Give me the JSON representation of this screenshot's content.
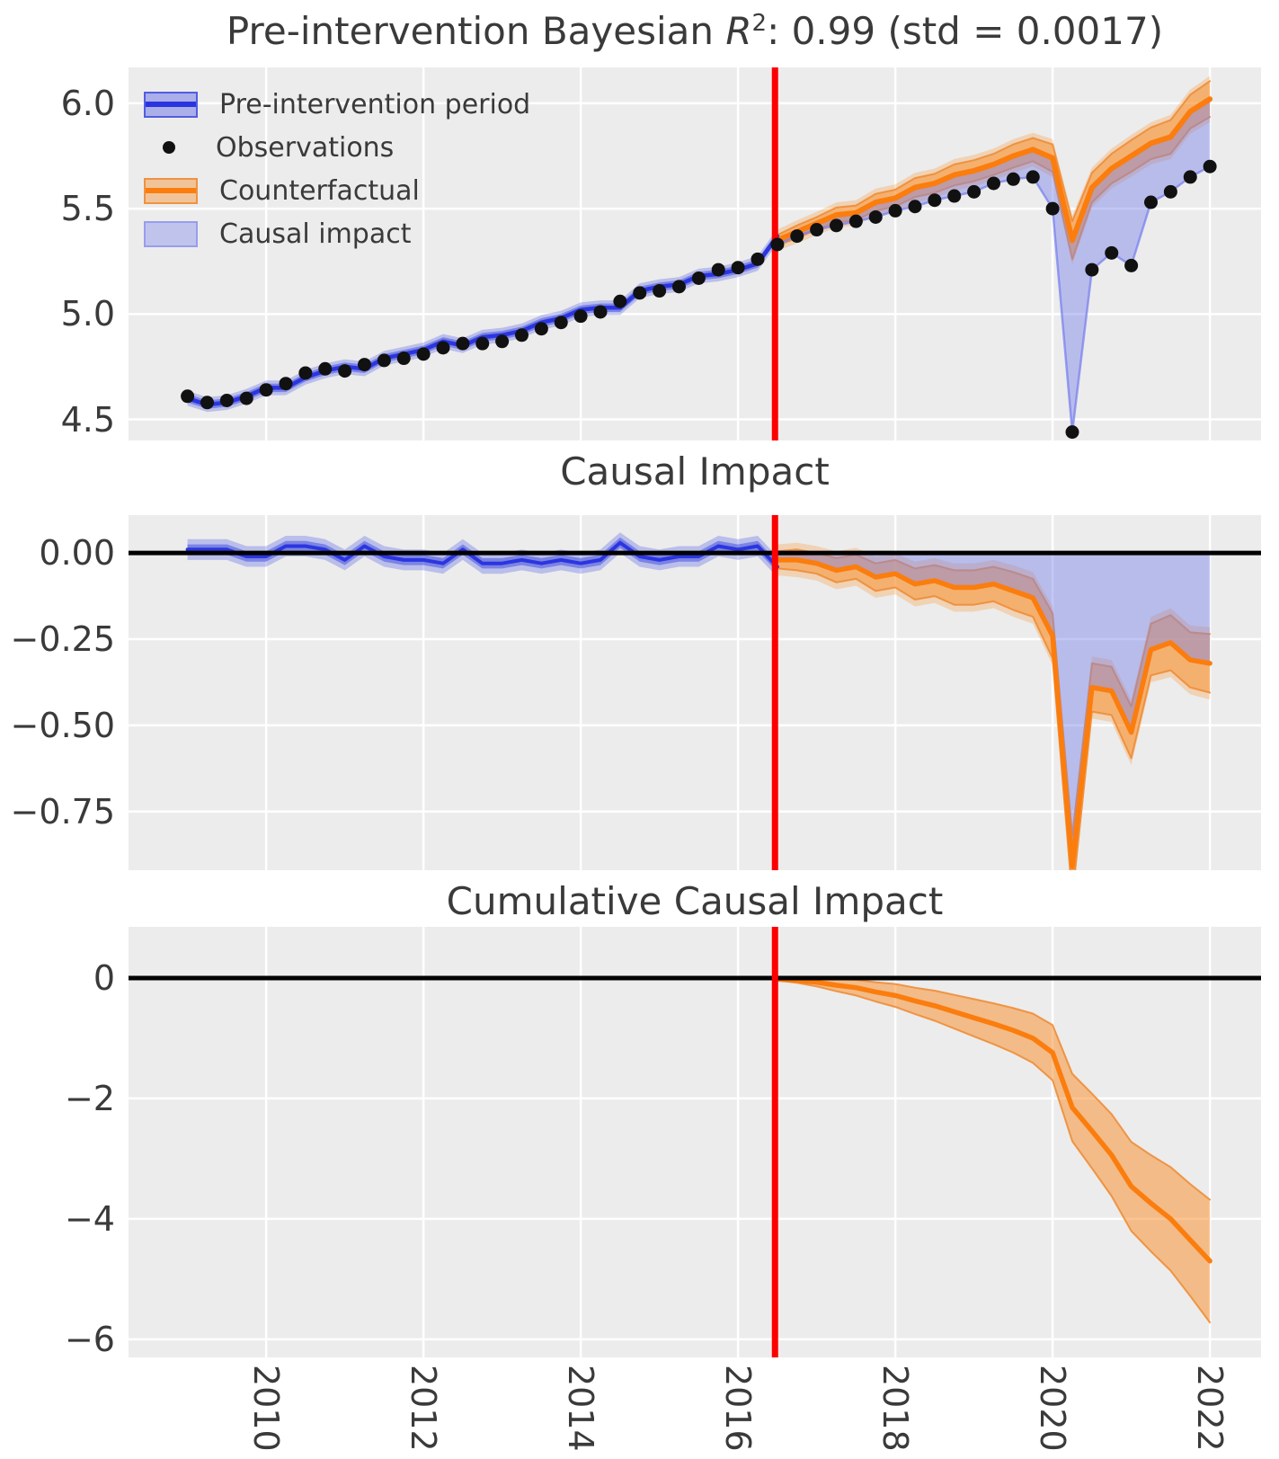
{
  "figure": {
    "background": "#ffffff",
    "panel_bg": "#ececec",
    "grid_color": "#ffffff",
    "text_color": "#3a3a3a",
    "colors": {
      "blue_line": "#2b35df",
      "blue_band_inner": "rgba(60,72,222,0.50)",
      "blue_band_outer": "rgba(70,82,228,0.30)",
      "causal_fill": "rgba(122,130,235,0.45)",
      "obs_connector": "rgba(115,124,238,0.70)",
      "orange_line": "#fb7d0d",
      "orange_band_inner": "rgba(247,148,52,0.55)",
      "orange_band_outer": "rgba(247,148,52,0.30)",
      "orange_band_edge": "rgba(238,138,48,0.85)",
      "red_line": "#fc0000",
      "zero_line": "#000000",
      "dot": "#111111"
    }
  },
  "titles": {
    "panel1_prefix": "Pre-intervention Bayesian ",
    "panel1_math_base": "R",
    "panel1_math_exp": "2",
    "panel1_suffix": ": 0.99 (std = 0.0017)",
    "panel2": "Causal Impact",
    "panel3": "Cumulative Causal Impact"
  },
  "legend": {
    "items": [
      {
        "label": "Pre-intervention period",
        "swatch": "blue-band"
      },
      {
        "label": "Observations",
        "swatch": "black-dot"
      },
      {
        "label": "Counterfactual",
        "swatch": "orange-band"
      },
      {
        "label": "Causal impact",
        "swatch": "lightblue-fill"
      }
    ]
  },
  "axes": {
    "x_ticks": [
      2010,
      2012,
      2014,
      2016,
      2018,
      2020,
      2022
    ],
    "x_tick_labels": [
      "2010",
      "2012",
      "2014",
      "2016",
      "2018",
      "2020",
      "2022"
    ],
    "x_range": [
      2008.25,
      2022.65
    ],
    "intervention_x": 2016.47
  },
  "chart_data": [
    {
      "type": "line",
      "title": "Pre-intervention Bayesian R2: 0.99 (std = 0.0017)",
      "x_start": 2009.0,
      "x_step": 0.25,
      "n": 53,
      "intervention_index": 30,
      "ylim": [
        4.4,
        6.17
      ],
      "yticks": [
        6.0,
        5.5,
        5.0,
        4.5
      ],
      "ytick_labels": [
        "6.0",
        "5.5",
        "5.0",
        "4.5"
      ],
      "observations": [
        4.61,
        4.58,
        4.59,
        4.6,
        4.64,
        4.67,
        4.72,
        4.74,
        4.73,
        4.76,
        4.78,
        4.79,
        4.81,
        4.84,
        4.86,
        4.86,
        4.87,
        4.9,
        4.93,
        4.96,
        4.99,
        5.01,
        5.06,
        5.1,
        5.11,
        5.13,
        5.17,
        5.21,
        5.22,
        5.26,
        5.33,
        5.37,
        5.4,
        5.42,
        5.44,
        5.46,
        5.49,
        5.51,
        5.54,
        5.56,
        5.58,
        5.62,
        5.64,
        5.65,
        5.5,
        4.44,
        5.21,
        5.29,
        5.23,
        5.53,
        5.58,
        5.65,
        5.7
      ],
      "pre_fit": [
        4.6,
        4.57,
        4.58,
        4.61,
        4.65,
        4.65,
        4.7,
        4.73,
        4.75,
        4.74,
        4.79,
        4.81,
        4.83,
        4.87,
        4.85,
        4.89,
        4.9,
        4.92,
        4.96,
        4.98,
        5.02,
        5.03,
        5.03,
        5.11,
        5.13,
        5.14,
        5.18,
        5.19,
        5.21,
        5.24,
        5.37
      ],
      "pre_band_inner_halfwidth": 0.02,
      "pre_band_outer_halfwidth": 0.035,
      "counterfactual": [
        5.35,
        5.39,
        5.43,
        5.47,
        5.48,
        5.53,
        5.55,
        5.6,
        5.62,
        5.66,
        5.68,
        5.71,
        5.75,
        5.78,
        5.74,
        5.35,
        5.6,
        5.69,
        5.75,
        5.81,
        5.84,
        5.96,
        6.02
      ],
      "cf_band_halfwidth": [
        0.025,
        0.03,
        0.03,
        0.035,
        0.035,
        0.04,
        0.04,
        0.045,
        0.045,
        0.05,
        0.05,
        0.05,
        0.055,
        0.055,
        0.065,
        0.09,
        0.07,
        0.07,
        0.075,
        0.075,
        0.08,
        0.08,
        0.085
      ]
    },
    {
      "type": "line",
      "title": "Causal Impact",
      "ylim": [
        -0.92,
        0.11
      ],
      "yticks": [
        0.0,
        -0.25,
        -0.5,
        -0.75
      ],
      "ytick_labels": [
        "0.00",
        "−0.25",
        "−0.50",
        "−0.75"
      ],
      "pre_impact": [
        0.01,
        0.01,
        0.01,
        -0.01,
        -0.01,
        0.02,
        0.02,
        0.01,
        -0.02,
        0.02,
        -0.01,
        -0.02,
        -0.02,
        -0.03,
        0.01,
        -0.03,
        -0.03,
        -0.02,
        -0.03,
        -0.02,
        -0.03,
        -0.02,
        0.03,
        -0.01,
        -0.02,
        -0.01,
        -0.01,
        0.02,
        0.01,
        0.02,
        -0.04
      ],
      "pre_band_inner_halfwidth": 0.015,
      "pre_band_outer_halfwidth": 0.03,
      "post_impact": [
        -0.02,
        -0.02,
        -0.03,
        -0.05,
        -0.04,
        -0.07,
        -0.06,
        -0.09,
        -0.08,
        -0.1,
        -0.1,
        -0.09,
        -0.11,
        -0.13,
        -0.24,
        -0.91,
        -0.39,
        -0.4,
        -0.52,
        -0.28,
        -0.26,
        -0.31,
        -0.32
      ],
      "post_band_halfwidth": [
        0.025,
        0.03,
        0.03,
        0.035,
        0.035,
        0.04,
        0.04,
        0.045,
        0.045,
        0.05,
        0.05,
        0.05,
        0.055,
        0.055,
        0.065,
        0.09,
        0.07,
        0.07,
        0.075,
        0.075,
        0.08,
        0.08,
        0.085
      ]
    },
    {
      "type": "line",
      "title": "Cumulative Causal Impact",
      "ylim": [
        -6.3,
        0.85
      ],
      "yticks": [
        0,
        -2,
        -4,
        -6
      ],
      "ytick_labels": [
        "0",
        "−2",
        "−4",
        "−6"
      ],
      "cumulative": [
        -0.02,
        -0.04,
        -0.07,
        -0.12,
        -0.16,
        -0.23,
        -0.29,
        -0.38,
        -0.46,
        -0.56,
        -0.66,
        -0.76,
        -0.87,
        -1.0,
        -1.24,
        -2.15,
        -2.54,
        -2.94,
        -3.46,
        -3.74,
        -4.0,
        -4.35,
        -4.7
      ],
      "band_halfwidth": [
        0.02,
        0.04,
        0.07,
        0.1,
        0.13,
        0.16,
        0.19,
        0.22,
        0.25,
        0.28,
        0.31,
        0.34,
        0.37,
        0.41,
        0.46,
        0.56,
        0.62,
        0.68,
        0.74,
        0.8,
        0.86,
        0.93,
        1.02
      ]
    }
  ]
}
